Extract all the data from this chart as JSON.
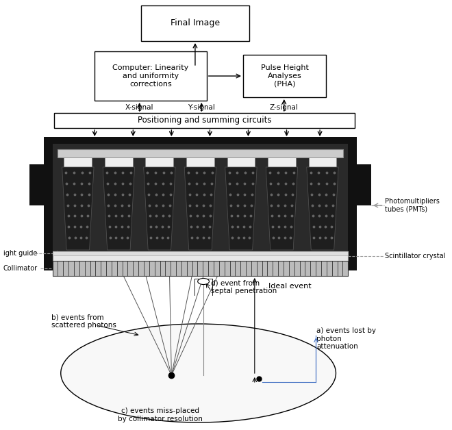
{
  "bg_color": "#ffffff",
  "labels": {
    "final_image": "Final Image",
    "computer": "Computer: Linearity\nand uniformity\ncorrections",
    "pha": "Pulse Height\nAnalyses\n(PHA)",
    "positioning": "Positioning and summing circuits",
    "x_signal": "X-signal",
    "y_signal": "Y-signal",
    "z_signal": "Z-signal",
    "pmt": "Photomultipliers\ntubes (PMTs)",
    "light_guide": "ight guide",
    "scint": "Scintillator crystal",
    "collimator": "Collimator",
    "ideal": "Ideal event",
    "a_label": "a) events lost by\nphoton\nattenuation",
    "b_label": "b) events from\nscattered photons",
    "c_label": "c) events miss-placed\nby collimator resolution",
    "d_label": "d) event from\nseptal penetration"
  },
  "pmt_count": 7,
  "fig_w": 6.6,
  "fig_h": 6.28,
  "dpi": 100
}
